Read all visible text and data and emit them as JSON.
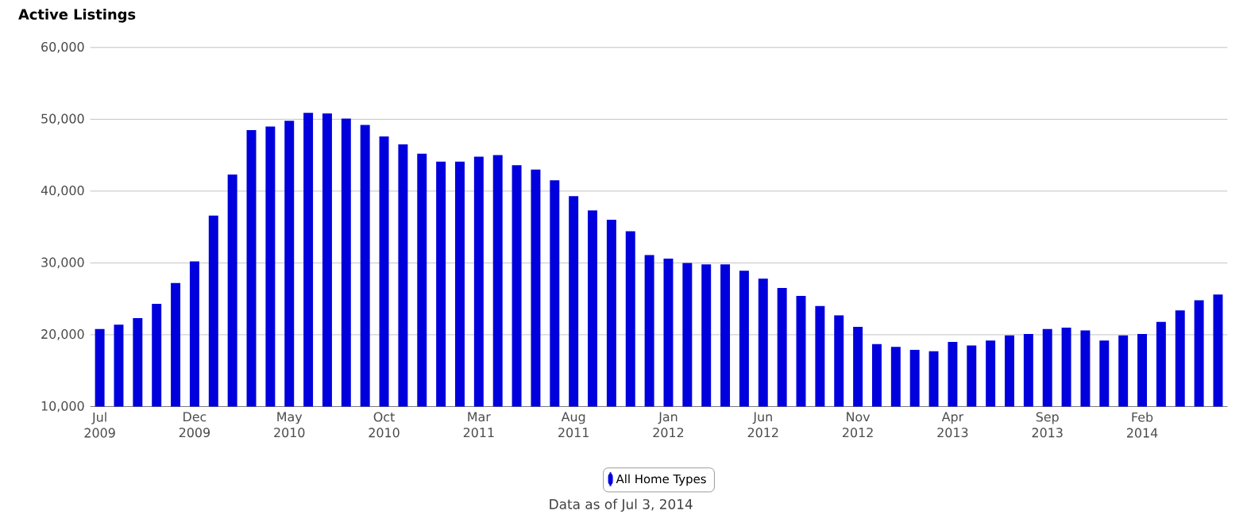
{
  "chart_data": {
    "type": "bar",
    "title": "Active Listings",
    "categories": [
      "Jul 2009",
      null,
      null,
      null,
      null,
      "Dec 2009",
      null,
      null,
      null,
      null,
      "May 2010",
      null,
      null,
      null,
      null,
      "Oct 2010",
      null,
      null,
      null,
      null,
      "Mar 2011",
      null,
      null,
      null,
      null,
      "Aug 2011",
      null,
      null,
      null,
      null,
      "Jan 2012",
      null,
      null,
      null,
      null,
      "Jun 2012",
      null,
      null,
      null,
      null,
      "Nov 2012",
      null,
      null,
      null,
      null,
      "Apr 2013",
      null,
      null,
      null,
      null,
      "Sep 2013",
      null,
      null,
      null,
      null,
      "Feb 2014",
      null,
      null,
      null,
      null
    ],
    "series": [
      {
        "name": "All Home Types",
        "color": "#0000dd",
        "values": [
          20800,
          21400,
          22300,
          24300,
          27200,
          30200,
          36600,
          42300,
          48500,
          49000,
          49800,
          50900,
          50800,
          50100,
          49200,
          47600,
          46500,
          45200,
          44100,
          44100,
          44800,
          45000,
          43600,
          43000,
          41500,
          39300,
          37300,
          36000,
          34400,
          31100,
          30600,
          30000,
          29800,
          29800,
          28900,
          27800,
          26500,
          25400,
          24000,
          22700,
          21100,
          18700,
          18300,
          17900,
          17700,
          19000,
          18500,
          19200,
          19900,
          20100,
          20800,
          21000,
          20600,
          19200,
          19900,
          20100,
          21800,
          23400,
          24800,
          25600
        ]
      }
    ],
    "ylim": [
      10000,
      60000
    ],
    "yticks": [
      {
        "value": 10000,
        "label": "10,000"
      },
      {
        "value": 20000,
        "label": "20,000"
      },
      {
        "value": 30000,
        "label": "30,000"
      },
      {
        "value": 40000,
        "label": "40,000"
      },
      {
        "value": 50000,
        "label": "50,000"
      },
      {
        "value": 60000,
        "label": "60,000"
      }
    ],
    "grid": "y",
    "legend": "bottom",
    "annotations": [
      "Data as of Jul 3, 2014"
    ]
  }
}
